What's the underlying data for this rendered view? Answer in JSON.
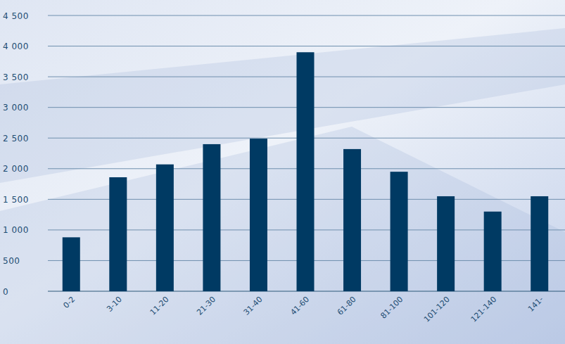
{
  "chart_data": {
    "type": "bar",
    "categories": [
      "0-2",
      "3-10",
      "11-20",
      "21-30",
      "31-40",
      "41-60",
      "61-80",
      "81-100",
      "101-120",
      "121-140",
      "141-"
    ],
    "values": [
      880,
      1860,
      2070,
      2400,
      2490,
      3900,
      2320,
      1950,
      1550,
      1300,
      1550
    ],
    "color": "#003a63",
    "ylim": [
      0,
      4500
    ],
    "yticks": [
      0,
      500,
      {
        "value": 1000,
        "label": "1 000"
      },
      {
        "value": 1500,
        "label": "1 500"
      },
      {
        "value": 2000,
        "label": "2 000"
      },
      {
        "value": 2500,
        "label": "2 500"
      },
      {
        "value": 3000,
        "label": "3 000"
      },
      {
        "value": 3500,
        "label": "3 500"
      },
      {
        "value": 4000,
        "label": "4 000"
      },
      {
        "value": 4500,
        "label": "4 500"
      }
    ],
    "grid": true
  }
}
